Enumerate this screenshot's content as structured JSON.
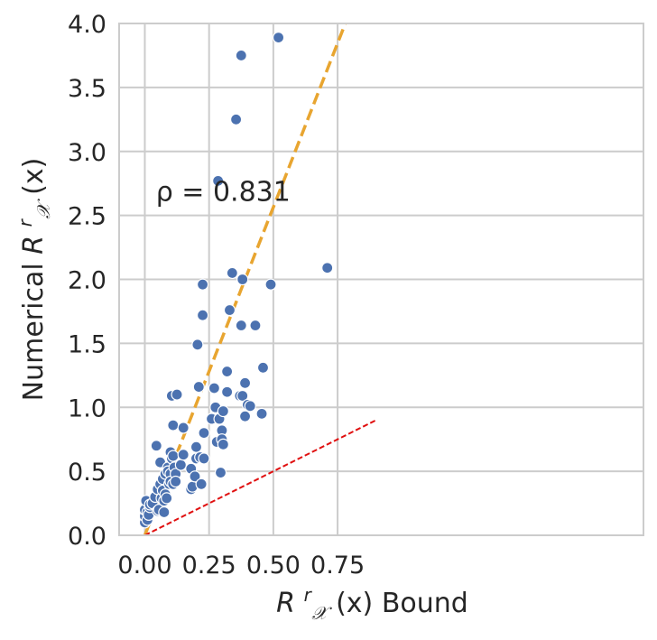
{
  "chart_data": {
    "type": "scatter",
    "title": "",
    "xlabel": {
      "base": "R",
      "sup": "r",
      "sub": "𝒳",
      "arg": "(x)",
      "suffix": " Bound"
    },
    "ylabel": {
      "prefix": "Numerical ",
      "base": "R",
      "sup": "r",
      "sub": "𝒳",
      "arg": "(x)"
    },
    "xlim": [
      -0.1,
      1.94
    ],
    "ylim": [
      0.0,
      4.0
    ],
    "xticks": [
      0.0,
      0.25,
      0.5,
      0.75
    ],
    "xtick_labels": [
      "0.00",
      "0.25",
      "0.50",
      "0.75"
    ],
    "yticks": [
      0.0,
      0.5,
      1.0,
      1.5,
      2.0,
      2.5,
      3.0,
      3.5,
      4.0
    ],
    "ytick_labels": [
      "0.0",
      "0.5",
      "1.0",
      "1.5",
      "2.0",
      "2.5",
      "3.0",
      "3.5",
      "4.0"
    ],
    "grid": true,
    "annotation": {
      "text": "ρ = 0.831",
      "x": 0.05,
      "y": 2.7
    },
    "colors": {
      "points": "#4c72b0",
      "fit_line": "#e8a530",
      "reference_line": "#e01010",
      "grid": "#cccccc"
    },
    "lines": [
      {
        "style": "dashed",
        "color": "#e8a530",
        "x": [
          0.0,
          0.78
        ],
        "y": [
          0.0,
          4.0
        ]
      },
      {
        "style": "dashed",
        "color": "#e01010",
        "x": [
          0.0,
          0.9
        ],
        "y": [
          0.0,
          0.9
        ]
      }
    ],
    "points": [
      [
        0.0,
        0.1
      ],
      [
        0.0,
        0.15
      ],
      [
        0.0,
        0.2
      ],
      [
        0.005,
        0.27
      ],
      [
        0.01,
        0.18
      ],
      [
        0.01,
        0.12
      ],
      [
        0.015,
        0.16
      ],
      [
        0.02,
        0.22
      ],
      [
        0.02,
        0.24
      ],
      [
        0.03,
        0.25
      ],
      [
        0.04,
        0.3
      ],
      [
        0.045,
        0.7
      ],
      [
        0.05,
        0.36
      ],
      [
        0.05,
        0.19
      ],
      [
        0.055,
        0.2
      ],
      [
        0.06,
        0.4
      ],
      [
        0.06,
        0.57
      ],
      [
        0.065,
        0.29
      ],
      [
        0.07,
        0.44
      ],
      [
        0.07,
        0.35
      ],
      [
        0.075,
        0.27
      ],
      [
        0.075,
        0.18
      ],
      [
        0.08,
        0.48
      ],
      [
        0.08,
        0.32
      ],
      [
        0.085,
        0.29
      ],
      [
        0.09,
        0.53
      ],
      [
        0.09,
        0.5
      ],
      [
        0.095,
        0.4
      ],
      [
        0.1,
        0.65
      ],
      [
        0.1,
        0.48
      ],
      [
        0.1,
        0.42
      ],
      [
        0.105,
        0.6
      ],
      [
        0.105,
        1.09
      ],
      [
        0.11,
        0.86
      ],
      [
        0.11,
        0.62
      ],
      [
        0.11,
        0.4
      ],
      [
        0.115,
        0.53
      ],
      [
        0.12,
        0.48
      ],
      [
        0.12,
        0.42
      ],
      [
        0.125,
        1.1
      ],
      [
        0.14,
        0.55
      ],
      [
        0.15,
        0.63
      ],
      [
        0.15,
        0.84
      ],
      [
        0.18,
        0.52
      ],
      [
        0.18,
        0.36
      ],
      [
        0.185,
        0.38
      ],
      [
        0.195,
        0.46
      ],
      [
        0.2,
        0.69
      ],
      [
        0.2,
        0.6
      ],
      [
        0.205,
        1.49
      ],
      [
        0.21,
        1.16
      ],
      [
        0.215,
        0.61
      ],
      [
        0.22,
        0.4
      ],
      [
        0.225,
        1.96
      ],
      [
        0.225,
        1.72
      ],
      [
        0.23,
        0.8
      ],
      [
        0.23,
        0.6
      ],
      [
        0.26,
        0.91
      ],
      [
        0.27,
        1.15
      ],
      [
        0.275,
        1.0
      ],
      [
        0.28,
        0.73
      ],
      [
        0.285,
        2.77
      ],
      [
        0.29,
        0.91
      ],
      [
        0.295,
        0.49
      ],
      [
        0.3,
        0.82
      ],
      [
        0.3,
        0.75
      ],
      [
        0.305,
        0.97
      ],
      [
        0.305,
        0.71
      ],
      [
        0.32,
        1.28
      ],
      [
        0.32,
        1.12
      ],
      [
        0.33,
        1.76
      ],
      [
        0.34,
        2.05
      ],
      [
        0.355,
        3.25
      ],
      [
        0.37,
        1.09
      ],
      [
        0.375,
        3.75
      ],
      [
        0.375,
        1.64
      ],
      [
        0.38,
        2.0
      ],
      [
        0.38,
        1.09
      ],
      [
        0.39,
        0.93
      ],
      [
        0.39,
        1.19
      ],
      [
        0.4,
        1.02
      ],
      [
        0.41,
        1.01
      ],
      [
        0.43,
        1.64
      ],
      [
        0.455,
        0.95
      ],
      [
        0.46,
        1.31
      ],
      [
        0.49,
        1.96
      ],
      [
        0.52,
        3.89
      ],
      [
        0.71,
        2.09
      ]
    ]
  }
}
